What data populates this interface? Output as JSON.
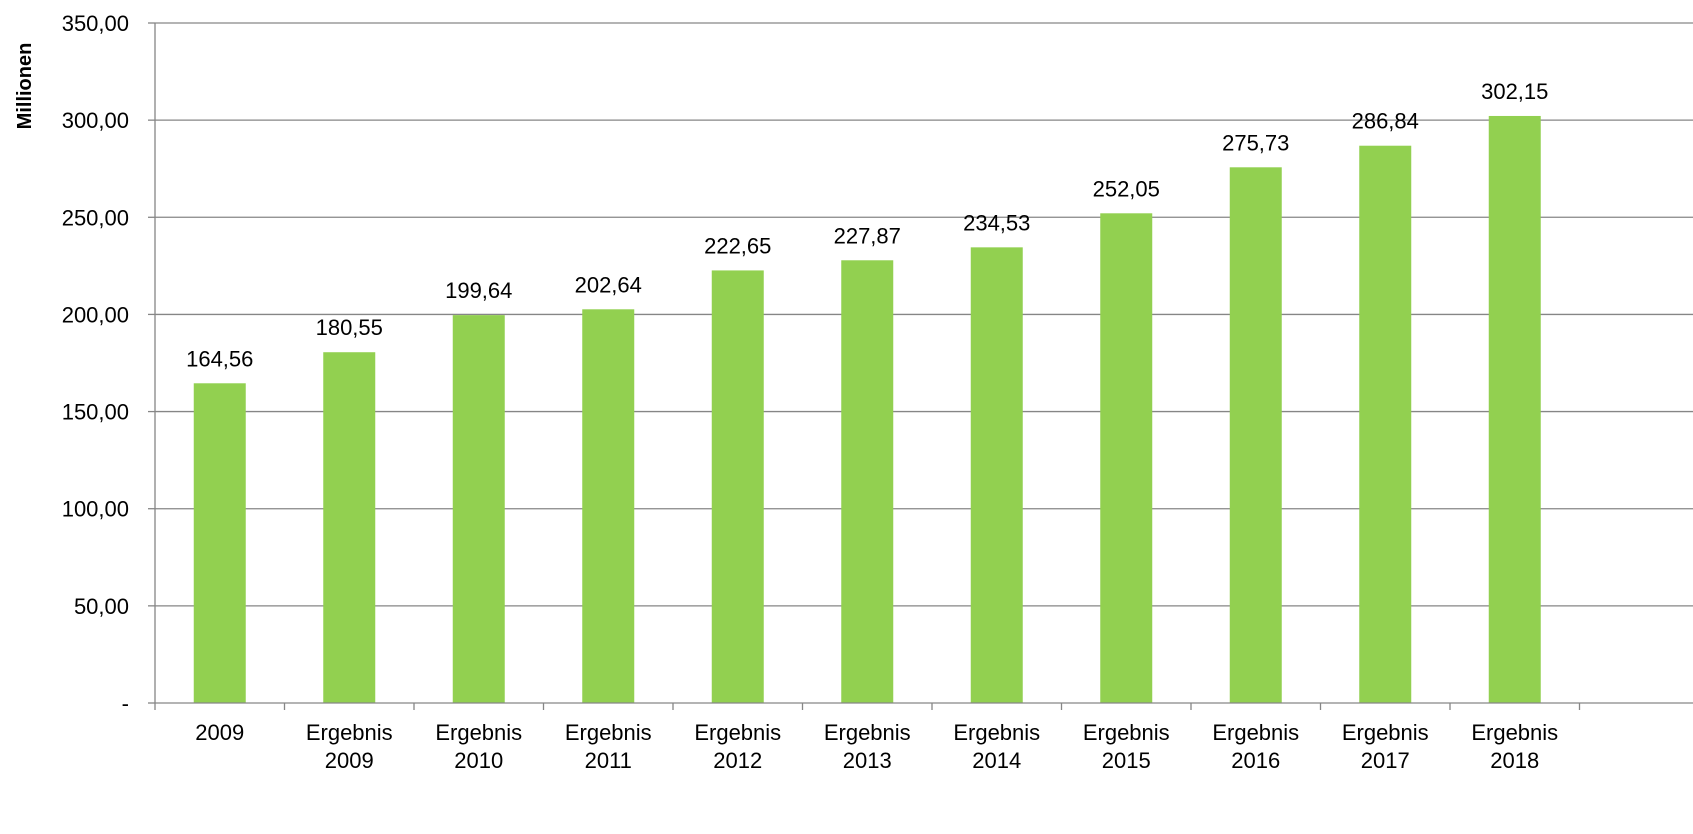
{
  "chart_data": {
    "type": "bar",
    "title": "",
    "xlabel": "",
    "ylabel": "Millionen",
    "ylim": [
      0,
      350
    ],
    "yticks": [
      0,
      50,
      100,
      150,
      200,
      250,
      300,
      350
    ],
    "ytick_labels": [
      "-",
      "50,00",
      "100,00",
      "150,00",
      "200,00",
      "250,00",
      "300,00",
      "350,00"
    ],
    "categories": [
      [
        "2009"
      ],
      [
        "Ergebnis",
        "2009"
      ],
      [
        "Ergebnis",
        "2010"
      ],
      [
        "Ergebnis",
        "2011"
      ],
      [
        "Ergebnis",
        "2012"
      ],
      [
        "Ergebnis",
        "2013"
      ],
      [
        "Ergebnis",
        "2014"
      ],
      [
        "Ergebnis",
        "2015"
      ],
      [
        "Ergebnis",
        "2016"
      ],
      [
        "Ergebnis",
        "2017"
      ],
      [
        "Ergebnis",
        "2018"
      ]
    ],
    "values": [
      164.56,
      180.55,
      199.64,
      202.64,
      222.65,
      227.87,
      234.53,
      252.05,
      275.73,
      286.84,
      302.15
    ],
    "value_labels": [
      "164,56",
      "180,55",
      "199,64",
      "202,64",
      "222,65",
      "227,87",
      "234,53",
      "252,05",
      "275,73",
      "286,84",
      "302,15"
    ],
    "grid": true,
    "legend": "none",
    "colors": {
      "bar": "#92d050",
      "grid": "#868686",
      "axis": "#868686"
    }
  }
}
